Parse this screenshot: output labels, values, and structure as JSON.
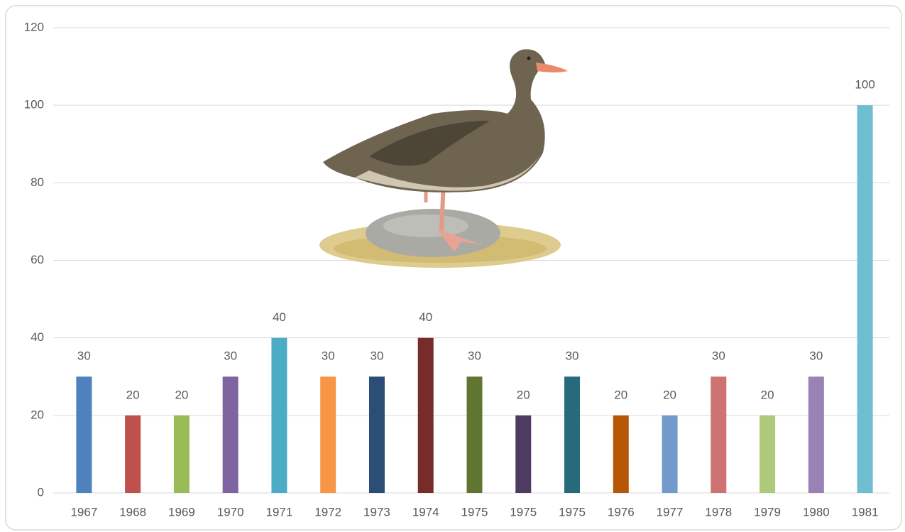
{
  "chart_data": {
    "type": "bar",
    "categories": [
      "1967",
      "1968",
      "1969",
      "1970",
      "1971",
      "1972",
      "1973",
      "1974",
      "1975",
      "1975",
      "1975",
      "1976",
      "1977",
      "1978",
      "1979",
      "1980",
      "1981"
    ],
    "values": [
      30,
      20,
      20,
      30,
      40,
      30,
      30,
      40,
      30,
      20,
      30,
      20,
      20,
      30,
      20,
      30,
      100
    ],
    "colors": [
      "#4f81bd",
      "#c0504d",
      "#9bbb59",
      "#8064a2",
      "#4bacc6",
      "#f79646",
      "#2c4d75",
      "#772c2a",
      "#5f7530",
      "#4d3b62",
      "#276a7c",
      "#b65708",
      "#729aca",
      "#cd7371",
      "#afc97a",
      "#9983b5",
      "#6fbdd1"
    ],
    "ylim": [
      0,
      120
    ],
    "yticks": [
      0,
      20,
      40,
      60,
      80,
      100,
      120
    ],
    "grid": true
  }
}
